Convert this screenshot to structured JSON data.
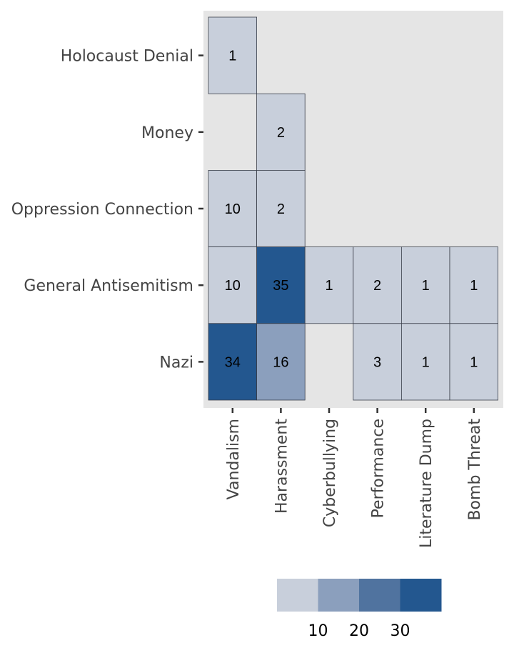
{
  "chart_data": {
    "type": "heatmap",
    "title": "",
    "xlabel": "",
    "ylabel": "",
    "x_categories": [
      "Vandalism",
      "Harassment",
      "Cyberbullying",
      "Performance",
      "Literature Dump",
      "Bomb Threat"
    ],
    "y_categories": [
      "Holocaust Denial",
      "Money",
      "Oppression Connection",
      "General Antisemitism",
      "Nazi"
    ],
    "cells": [
      {
        "x": "Vandalism",
        "y": "Holocaust Denial",
        "value": 1
      },
      {
        "x": "Harassment",
        "y": "Money",
        "value": 2
      },
      {
        "x": "Vandalism",
        "y": "Oppression Connection",
        "value": 10
      },
      {
        "x": "Harassment",
        "y": "Oppression Connection",
        "value": 2
      },
      {
        "x": "Vandalism",
        "y": "General Antisemitism",
        "value": 10
      },
      {
        "x": "Harassment",
        "y": "General Antisemitism",
        "value": 35
      },
      {
        "x": "Cyberbullying",
        "y": "General Antisemitism",
        "value": 1
      },
      {
        "x": "Performance",
        "y": "General Antisemitism",
        "value": 2
      },
      {
        "x": "Literature Dump",
        "y": "General Antisemitism",
        "value": 1
      },
      {
        "x": "Bomb Threat",
        "y": "General Antisemitism",
        "value": 1
      },
      {
        "x": "Vandalism",
        "y": "Nazi",
        "value": 34
      },
      {
        "x": "Harassment",
        "y": "Nazi",
        "value": 16
      },
      {
        "x": "Performance",
        "y": "Nazi",
        "value": 3
      },
      {
        "x": "Literature Dump",
        "y": "Nazi",
        "value": 1
      },
      {
        "x": "Bomb Threat",
        "y": "Nazi",
        "value": 1
      }
    ],
    "legend": {
      "position": "bottom",
      "ticks": [
        10,
        20,
        30
      ],
      "bins": [
        {
          "max": 10,
          "color": "#c8cfdb"
        },
        {
          "max": 20,
          "color": "#8b9fbd"
        },
        {
          "max": 30,
          "color": "#50739f"
        },
        {
          "max": 40,
          "color": "#23578f"
        }
      ]
    },
    "grid": false,
    "panel_background": "#e5e5e5",
    "cell_border_color": "#3a3f4a"
  }
}
